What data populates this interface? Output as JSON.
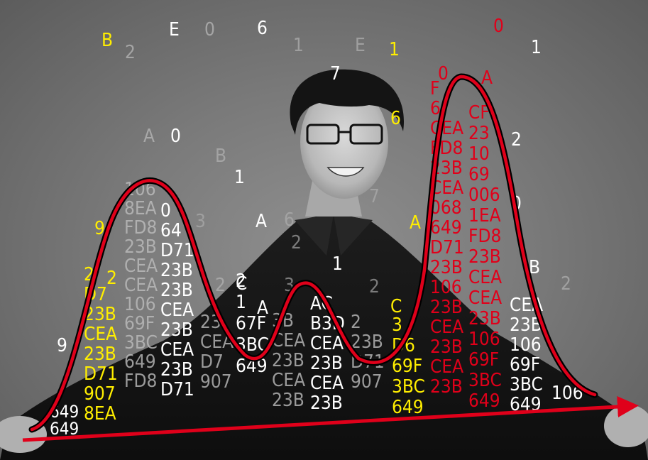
{
  "colors": {
    "background": "#7a7a7a",
    "curve": "#e0001a",
    "outline": "#000000",
    "white": "#ffffff",
    "yellow": "#ffee00",
    "red": "#e0001a",
    "gray": "#bdbdbd"
  },
  "scattered_glyphs": [
    "B",
    "E",
    "0",
    "6",
    "2",
    "1",
    "E",
    "1",
    "0",
    "1",
    "7",
    "0",
    "A",
    "6",
    "A",
    "0",
    "2",
    "B",
    "1",
    "0",
    "3",
    "A",
    "6",
    "A",
    "9",
    "2",
    "C",
    "3",
    "2",
    "A",
    "2",
    "C",
    "2",
    "B",
    "2",
    "9",
    "1",
    "7"
  ],
  "columns": [
    {
      "color": "yellow",
      "cells": [
        "2",
        "D7",
        "23B",
        "CEA",
        "23B",
        "D71",
        "907",
        "8EA"
      ]
    },
    {
      "color": "gray",
      "cells": [
        "106",
        "8EA",
        "FD8",
        "23B",
        "CEA",
        "CEA",
        "106",
        "69F",
        "3BC",
        "649",
        "FD8"
      ]
    },
    {
      "color": "white",
      "cells": [
        "0",
        "64",
        "D71",
        "23B",
        "23B",
        "CEA",
        "23B",
        "CEA",
        "23B",
        "D71"
      ]
    },
    {
      "color": "gray",
      "cells": [
        "23",
        "CEA",
        "D7",
        "907"
      ]
    },
    {
      "color": "white",
      "cells": [
        "2",
        "1",
        "67F",
        "3BC",
        "649"
      ]
    },
    {
      "color": "gray",
      "cells": [
        "3B",
        "CEA",
        "23B",
        "CEA",
        "23B"
      ]
    },
    {
      "color": "white",
      "cells": [
        "AC",
        "B3D",
        "CEA",
        "23B",
        "CEA",
        "23B"
      ]
    },
    {
      "color": "gray",
      "cells": [
        "2",
        "23B",
        "D71",
        "907"
      ]
    },
    {
      "color": "yellow",
      "cells": [
        "3",
        "D6",
        "69F",
        "3BC",
        "649"
      ]
    },
    {
      "color": "red",
      "cells": [
        "F",
        "6",
        "CEA",
        "FD8",
        "23B",
        "CEA",
        "068",
        "649",
        "D71",
        "23B",
        "106",
        "23B",
        "CEA",
        "23B",
        "CEA",
        "23B"
      ]
    },
    {
      "color": "red",
      "cells": [
        "CF",
        "23",
        "10",
        "69",
        "006",
        "1EA",
        "FD8",
        "23B",
        "CEA",
        "CEA",
        "23B",
        "106",
        "69F",
        "3BC",
        "649"
      ]
    },
    {
      "color": "white",
      "cells": [
        "CEA",
        "23B",
        "106",
        "69F",
        "3BC",
        "649"
      ]
    },
    {
      "color": "white",
      "cells": [
        "106"
      ]
    }
  ],
  "left_edge_rows": [
    "649",
    "649"
  ]
}
